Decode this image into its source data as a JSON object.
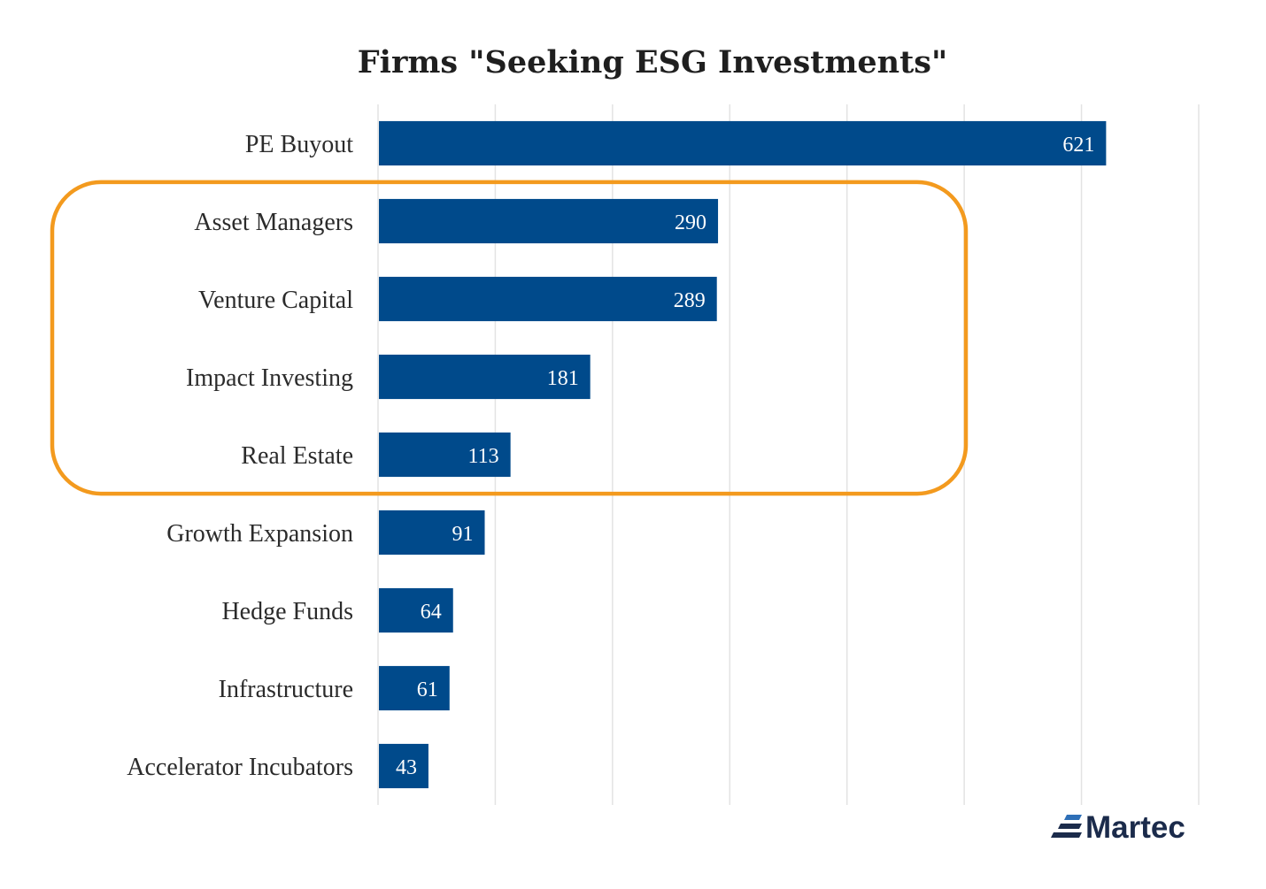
{
  "chart_data": {
    "type": "bar",
    "orientation": "horizontal",
    "title": "Firms \"Seeking ESG Investments\"",
    "categories": [
      "PE Buyout",
      "Asset Managers",
      "Venture Capital",
      "Impact Investing",
      "Real Estate",
      "Growth Expansion",
      "Hedge Funds",
      "Infrastructure",
      "Accelerator Incubators"
    ],
    "values": [
      621,
      290,
      289,
      181,
      113,
      91,
      64,
      61,
      43
    ],
    "data_labels": [
      "621",
      "290",
      "289",
      "181",
      "113",
      "91",
      "64",
      "61",
      "43"
    ],
    "xlim": [
      0,
      700
    ],
    "grid_step": 100,
    "grid": true,
    "xlabel": "",
    "ylabel": "",
    "highlighted_categories": [
      "Asset Managers",
      "Venture Capital",
      "Impact Investing",
      "Real Estate"
    ]
  },
  "colors": {
    "bar": "#004a8b",
    "highlight": "#f39a1e",
    "logo": "#1b2b4b",
    "logo_accent": "#2e6fb7"
  },
  "logo": {
    "text": "Martec",
    "icon": "martec-logo-icon"
  }
}
